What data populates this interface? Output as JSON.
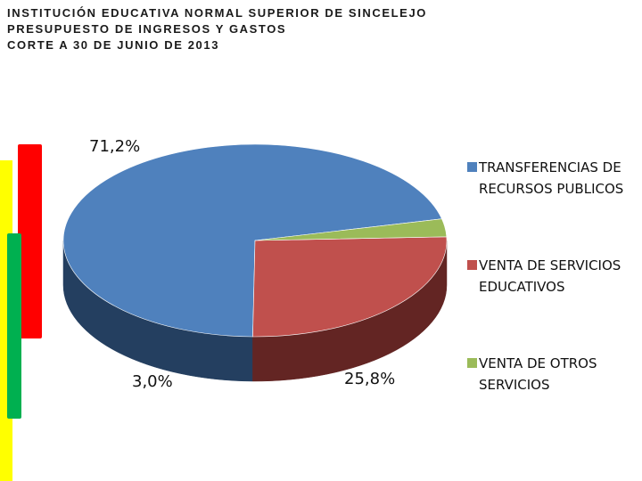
{
  "header": {
    "line1": "INSTITUCIÓN EDUCATIVA NORMAL SUPERIOR DE SINCELEJO",
    "line2": "PRESUPUESTO DE INGRESOS  Y GASTOS",
    "line3": "CORTE A 30 DE JUNIO DE 2013"
  },
  "decor": {
    "yellow": "#ffff00",
    "red": "#ff0000",
    "green": "#00b050"
  },
  "chart_data": {
    "type": "pie",
    "style": "3d",
    "title": "",
    "legend_position": "right",
    "slices": [
      {
        "label": "TRANSFERENCIAS DE RECURSOS PUBLICOS",
        "value": 71.2,
        "display": "71,2%",
        "color": "#4f81bd",
        "side_color": "#243f60"
      },
      {
        "label": "VENTA DE SERVICIOS EDUCATIVOS",
        "value": 25.8,
        "display": "25,8%",
        "color": "#c0504d",
        "side_color": "#632523"
      },
      {
        "label": "VENTA DE OTROS SERVICIOS",
        "value": 3.0,
        "display": "3,0%",
        "color": "#9bbb59",
        "side_color": "#4f6228"
      }
    ]
  },
  "legend": {
    "items": [
      {
        "text": "TRANSFERENCIAS DE RECURSOS PUBLICOS",
        "color": "#4f81bd"
      },
      {
        "text": "VENTA DE SERVICIOS EDUCATIVOS",
        "color": "#c0504d"
      },
      {
        "text": "VENTA DE OTROS SERVICIOS",
        "color": "#9bbb59"
      }
    ]
  }
}
